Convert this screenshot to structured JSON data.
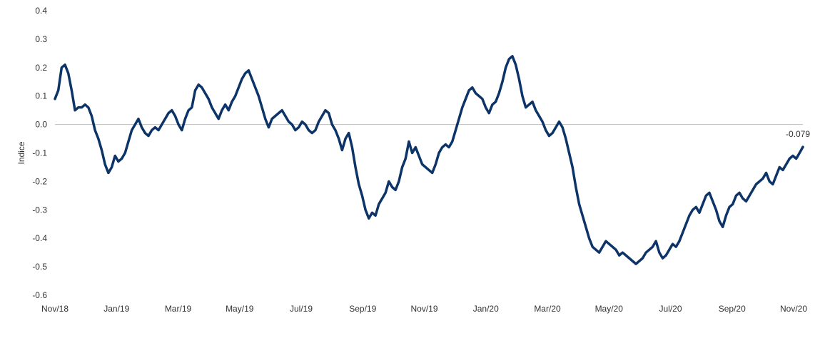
{
  "chart_data": {
    "type": "line",
    "title": "",
    "xlabel": "",
    "ylabel": "Indice",
    "ylim": [
      -0.6,
      0.4
    ],
    "yticks": [
      "0.4",
      "0.3",
      "0.2",
      "0.1",
      "0.0",
      "-0.1",
      "-0.2",
      "-0.3",
      "-0.4",
      "-0.5",
      "-0.6"
    ],
    "xticks": [
      "Nov/18",
      "Jan/19",
      "Mar/19",
      "May/19",
      "Jul/19",
      "Sep/19",
      "Nov/19",
      "Jan/20",
      "Mar/20",
      "May/20",
      "Jul/20",
      "Sep/20",
      "Nov/20"
    ],
    "grid": false,
    "zero_line": true,
    "line_color": "#0d3468",
    "end_label": "-0.079",
    "series": [
      {
        "values": [
          0.09,
          0.12,
          0.2,
          0.21,
          0.18,
          0.12,
          0.05,
          0.06,
          0.06,
          0.07,
          0.06,
          0.03,
          -0.02,
          -0.05,
          -0.09,
          -0.14,
          -0.17,
          -0.15,
          -0.11,
          -0.13,
          -0.12,
          -0.1,
          -0.06,
          -0.02,
          0.0,
          0.02,
          -0.01,
          -0.03,
          -0.04,
          -0.02,
          -0.01,
          -0.02,
          0.0,
          0.02,
          0.04,
          0.05,
          0.03,
          0.0,
          -0.02,
          0.02,
          0.05,
          0.06,
          0.12,
          0.14,
          0.13,
          0.11,
          0.09,
          0.06,
          0.04,
          0.02,
          0.05,
          0.07,
          0.05,
          0.08,
          0.1,
          0.13,
          0.16,
          0.18,
          0.19,
          0.16,
          0.13,
          0.1,
          0.06,
          0.02,
          -0.01,
          0.02,
          0.03,
          0.04,
          0.05,
          0.03,
          0.01,
          0.0,
          -0.02,
          -0.01,
          0.01,
          0.0,
          -0.02,
          -0.03,
          -0.02,
          0.01,
          0.03,
          0.05,
          0.04,
          0.0,
          -0.02,
          -0.05,
          -0.09,
          -0.05,
          -0.03,
          -0.08,
          -0.15,
          -0.21,
          -0.25,
          -0.3,
          -0.33,
          -0.31,
          -0.32,
          -0.28,
          -0.26,
          -0.24,
          -0.2,
          -0.22,
          -0.23,
          -0.2,
          -0.15,
          -0.12,
          -0.06,
          -0.1,
          -0.08,
          -0.11,
          -0.14,
          -0.15,
          -0.16,
          -0.17,
          -0.14,
          -0.1,
          -0.08,
          -0.07,
          -0.08,
          -0.06,
          -0.02,
          0.02,
          0.06,
          0.09,
          0.12,
          0.13,
          0.11,
          0.1,
          0.09,
          0.06,
          0.04,
          0.07,
          0.08,
          0.11,
          0.15,
          0.2,
          0.23,
          0.24,
          0.21,
          0.16,
          0.1,
          0.06,
          0.07,
          0.08,
          0.05,
          0.03,
          0.01,
          -0.02,
          -0.04,
          -0.03,
          -0.01,
          0.01,
          -0.01,
          -0.05,
          -0.1,
          -0.15,
          -0.22,
          -0.28,
          -0.32,
          -0.36,
          -0.4,
          -0.43,
          -0.44,
          -0.45,
          -0.43,
          -0.41,
          -0.42,
          -0.43,
          -0.44,
          -0.46,
          -0.45,
          -0.46,
          -0.47,
          -0.48,
          -0.49,
          -0.48,
          -0.47,
          -0.45,
          -0.44,
          -0.43,
          -0.41,
          -0.45,
          -0.47,
          -0.46,
          -0.44,
          -0.42,
          -0.43,
          -0.41,
          -0.38,
          -0.35,
          -0.32,
          -0.3,
          -0.29,
          -0.31,
          -0.28,
          -0.25,
          -0.24,
          -0.27,
          -0.3,
          -0.34,
          -0.36,
          -0.32,
          -0.29,
          -0.28,
          -0.25,
          -0.24,
          -0.26,
          -0.27,
          -0.25,
          -0.23,
          -0.21,
          -0.2,
          -0.19,
          -0.17,
          -0.2,
          -0.21,
          -0.18,
          -0.15,
          -0.16,
          -0.14,
          -0.12,
          -0.11,
          -0.12,
          -0.1,
          -0.079
        ]
      }
    ]
  }
}
